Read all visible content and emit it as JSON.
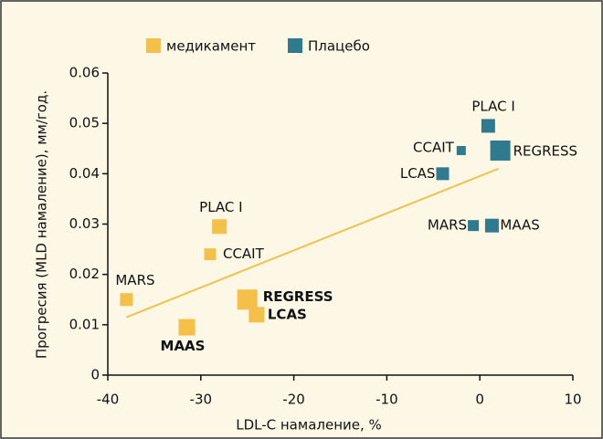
{
  "chart_data": {
    "type": "scatter",
    "xlabel": "LDL-C намаление, %",
    "ylabel": "Прогресия (MLD намаление), мм/год.",
    "xlim": [
      -40,
      10
    ],
    "xticks": [
      -40,
      -30,
      -20,
      -10,
      0,
      10
    ],
    "ylim": [
      0,
      0.06
    ],
    "yticks": [
      0,
      0.01,
      0.02,
      0.03,
      0.04,
      0.05,
      0.06
    ],
    "series": [
      {
        "name": "медикамент",
        "color": "#f4c04a",
        "labels": [
          "MARS",
          "MAAS",
          "PLAC I",
          "CCAIT",
          "REGRESS",
          "LCAS"
        ],
        "x": [
          -38,
          -31.5,
          -28,
          -29,
          -25,
          -24
        ],
        "values": [
          0.015,
          0.0095,
          0.0295,
          0.024,
          0.015,
          0.012
        ],
        "sizes": [
          14,
          18,
          16,
          13,
          22,
          17
        ]
      },
      {
        "name": "Плацебо",
        "color": "#2f7a8f",
        "labels": [
          "PLAC I",
          "CCAIT",
          "REGRESS",
          "LCAS",
          "MARS",
          "MAAS"
        ],
        "x": [
          0.9,
          -2,
          2.2,
          -4,
          -0.7,
          1.3
        ],
        "values": [
          0.0495,
          0.0446,
          0.0446,
          0.04,
          0.0297,
          0.0297
        ],
        "sizes": [
          15,
          10,
          22,
          14,
          12,
          15
        ]
      }
    ],
    "trendline": {
      "x": [
        -38,
        2
      ],
      "values": [
        0.0115,
        0.041
      ],
      "color": "#f4c04a"
    }
  }
}
